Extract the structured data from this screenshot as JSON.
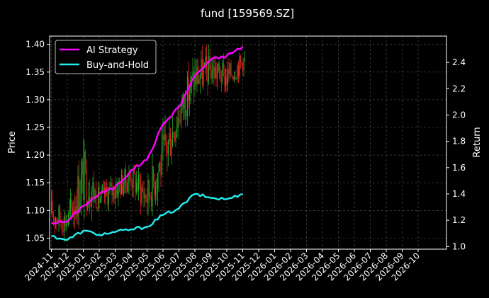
{
  "chart_data": {
    "type": "line",
    "title": "fund [159569.SZ]",
    "ylabel_left": "Price",
    "ylabel_right": "Return",
    "xlabel": "",
    "ylim_left": [
      1.03,
      1.415
    ],
    "ylim_right": [
      0.98,
      2.6
    ],
    "yticks_left": [
      "1.05",
      "1.10",
      "1.15",
      "1.20",
      "1.25",
      "1.30",
      "1.35",
      "1.40"
    ],
    "yticks_right": [
      "1.0",
      "1.2",
      "1.4",
      "1.6",
      "1.8",
      "2.0",
      "2.2",
      "2.4"
    ],
    "xticks": [
      "2024-11",
      "2024-12",
      "2025-01",
      "2025-02",
      "2025-03",
      "2025-04",
      "2025-05",
      "2025-06",
      "2025-07",
      "2025-08",
      "2025-09",
      "2025-10",
      "2025-11",
      "2025-12",
      "2026-01",
      "2026-02",
      "2026-03",
      "2026-04",
      "2026-05",
      "2026-06",
      "2026-07",
      "2026-08",
      "2026-09",
      "2026-10"
    ],
    "grid": true,
    "legend_position": "top-left",
    "candlestick_colors": {
      "up": "#22aa22",
      "down": "#e02020"
    },
    "price_range": {
      "x": [
        "2024-11",
        "2024-12",
        "2025-01",
        "2025-02",
        "2025-03",
        "2025-04",
        "2025-05",
        "2025-06",
        "2025-07",
        "2025-08",
        "2025-09",
        "2025-10",
        "2025-11"
      ],
      "low": [
        1.05,
        1.04,
        1.07,
        1.09,
        1.1,
        1.12,
        1.07,
        1.12,
        1.22,
        1.28,
        1.31,
        1.3,
        1.34
      ],
      "high": [
        1.14,
        1.12,
        1.25,
        1.15,
        1.18,
        1.2,
        1.18,
        1.27,
        1.33,
        1.4,
        1.4,
        1.38,
        1.4
      ]
    },
    "series": [
      {
        "name": "AI Strategy",
        "color": "#ff00ff",
        "axis": "right",
        "x": [
          "2024-11",
          "2024-12",
          "2025-01",
          "2025-02",
          "2025-03",
          "2025-04",
          "2025-05",
          "2025-06",
          "2025-07",
          "2025-08",
          "2025-09",
          "2025-10",
          "2025-11"
        ],
        "values": [
          1.18,
          1.19,
          1.31,
          1.4,
          1.45,
          1.58,
          1.66,
          1.93,
          2.06,
          2.3,
          2.42,
          2.45,
          2.52
        ]
      },
      {
        "name": "Buy-and-Hold",
        "color": "#22eeee",
        "axis": "right",
        "x": [
          "2024-11",
          "2024-12",
          "2025-01",
          "2025-02",
          "2025-03",
          "2025-04",
          "2025-05",
          "2025-06",
          "2025-07",
          "2025-08",
          "2025-09",
          "2025-10",
          "2025-11"
        ],
        "values": [
          1.08,
          1.05,
          1.12,
          1.09,
          1.11,
          1.13,
          1.15,
          1.24,
          1.29,
          1.4,
          1.37,
          1.36,
          1.4
        ]
      }
    ]
  }
}
